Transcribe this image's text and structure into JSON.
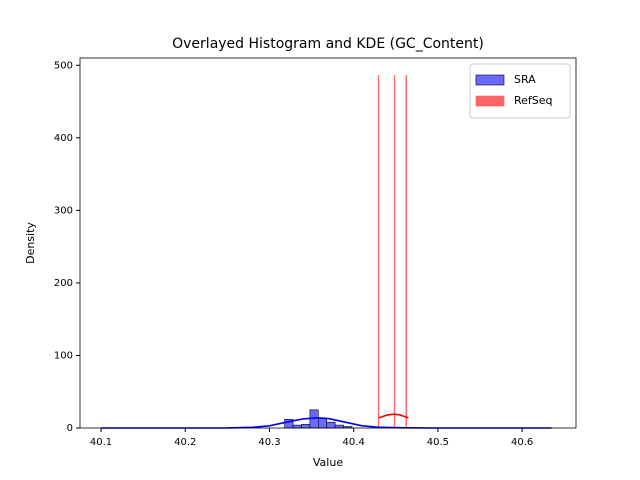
{
  "chart_data": {
    "type": "histogram",
    "title": "Overlayed Histogram and KDE (GC_Content)",
    "x_label": "Value",
    "y_label": "Density",
    "xlim": [
      40.075,
      40.664
    ],
    "ylim": [
      0,
      510
    ],
    "xticks": [
      40.1,
      40.2,
      40.3,
      40.4,
      40.5,
      40.6
    ],
    "yticks": [
      0,
      100,
      200,
      300,
      400,
      500
    ],
    "legend": "upper right",
    "series": [
      {
        "name": "SRA",
        "color": "#6a6aff",
        "edgecolor": "#000000",
        "bins": [
          40.318,
          40.328,
          40.338,
          40.348,
          40.358,
          40.368,
          40.378,
          40.388,
          40.398
        ],
        "values": [
          12,
          4,
          5,
          25,
          13,
          8,
          4,
          2
        ],
        "kde": {
          "color": "#0000ff",
          "x": [
            40.1,
            40.2,
            40.25,
            40.28,
            40.3,
            40.32,
            40.34,
            40.357,
            40.37,
            40.39,
            40.41,
            40.43,
            40.46,
            40.5,
            40.6,
            40.635
          ],
          "values": [
            0,
            0,
            0.1,
            1,
            3,
            8,
            12.5,
            14,
            13,
            8,
            3,
            1,
            0.2,
            0,
            0,
            0
          ]
        }
      },
      {
        "name": "RefSeq",
        "color": "#ff6464",
        "edgecolor": "#ff6464",
        "bins": [
          40.429,
          40.4297,
          40.448,
          40.4487,
          40.462,
          40.4627
        ],
        "values": [
          486,
          0,
          486,
          0,
          486
        ],
        "kde": {
          "color": "#ff0000",
          "x": [
            40.43,
            40.44,
            40.448,
            40.455,
            40.465
          ],
          "values": [
            14,
            18,
            19,
            18,
            14
          ]
        }
      }
    ]
  }
}
